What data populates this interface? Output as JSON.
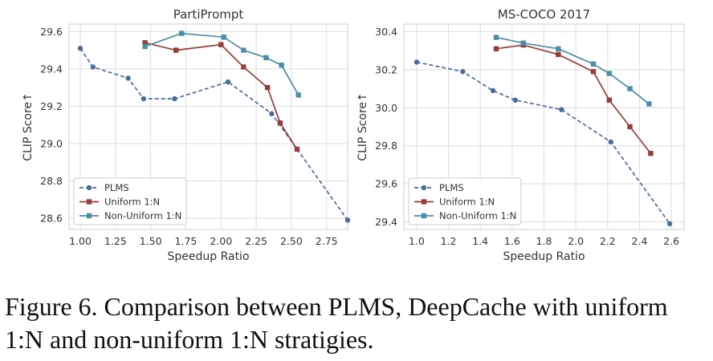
{
  "chart_data": [
    {
      "type": "line",
      "title": "PartiPrompt",
      "xlabel": "Speedup Ratio",
      "ylabel": "CLIP Score↑",
      "xlim": [
        0.92,
        2.9
      ],
      "ylim": [
        28.54,
        29.64
      ],
      "xticks": [
        1.0,
        1.25,
        1.5,
        1.75,
        2.0,
        2.25,
        2.5,
        2.75
      ],
      "xtick_labels": [
        "1.00",
        "1.25",
        "1.50",
        "1.75",
        "2.00",
        "2.25",
        "2.50",
        "2.75"
      ],
      "yticks": [
        28.6,
        28.8,
        29.0,
        29.2,
        29.4,
        29.6
      ],
      "ytick_labels": [
        "28.6",
        "28.8",
        "29.0",
        "29.2",
        "29.4",
        "29.6"
      ],
      "grid": true,
      "legend_position": "lower-left",
      "series": [
        {
          "name": "PLMS",
          "color": "#4a6c9b",
          "marker": "circle",
          "dash": true,
          "x": [
            1.0,
            1.09,
            1.34,
            1.45,
            1.67,
            2.05,
            2.36,
            2.9
          ],
          "y": [
            29.51,
            29.41,
            29.35,
            29.24,
            29.24,
            29.33,
            29.16,
            28.59
          ]
        },
        {
          "name": "Uniform 1:N",
          "color": "#963d38",
          "marker": "square",
          "dash": false,
          "x": [
            1.46,
            1.68,
            2.0,
            2.16,
            2.33,
            2.42,
            2.54
          ],
          "y": [
            29.54,
            29.5,
            29.53,
            29.41,
            29.3,
            29.11,
            28.97
          ]
        },
        {
          "name": "Non-Uniform 1:N",
          "color": "#4c8ea6",
          "marker": "square",
          "dash": false,
          "x": [
            1.46,
            1.72,
            2.02,
            2.16,
            2.32,
            2.43,
            2.55
          ],
          "y": [
            29.52,
            29.59,
            29.57,
            29.5,
            29.46,
            29.42,
            29.26
          ]
        }
      ]
    },
    {
      "type": "line",
      "title": "MS-COCO 2017",
      "xlabel": "Speedup Ratio",
      "ylabel": "CLIP Score↑",
      "xlim": [
        0.92,
        2.68
      ],
      "ylim": [
        29.36,
        30.44
      ],
      "xticks": [
        1.0,
        1.2,
        1.4,
        1.6,
        1.8,
        2.0,
        2.2,
        2.4,
        2.6
      ],
      "xtick_labels": [
        "1.0",
        "1.2",
        "1.4",
        "1.6",
        "1.8",
        "2.0",
        "2.2",
        "2.4",
        "2.6"
      ],
      "yticks": [
        29.4,
        29.6,
        29.8,
        30.0,
        30.2,
        30.4
      ],
      "ytick_labels": [
        "29.4",
        "29.6",
        "29.8",
        "30.0",
        "30.2",
        "30.4"
      ],
      "grid": true,
      "legend_position": "lower-left",
      "series": [
        {
          "name": "PLMS",
          "color": "#4a6c9b",
          "marker": "circle",
          "dash": true,
          "x": [
            1.0,
            1.29,
            1.48,
            1.62,
            1.91,
            2.22,
            2.59
          ],
          "y": [
            30.24,
            30.19,
            30.09,
            30.04,
            29.99,
            29.82,
            29.39
          ]
        },
        {
          "name": "Uniform 1:N",
          "color": "#963d38",
          "marker": "square",
          "dash": false,
          "x": [
            1.5,
            1.67,
            1.89,
            2.11,
            2.21,
            2.34,
            2.47
          ],
          "y": [
            30.31,
            30.33,
            30.28,
            30.19,
            30.04,
            29.9,
            29.76
          ]
        },
        {
          "name": "Non-Uniform 1:N",
          "color": "#4c8ea6",
          "marker": "square",
          "dash": false,
          "x": [
            1.5,
            1.67,
            1.89,
            2.11,
            2.21,
            2.34,
            2.46
          ],
          "y": [
            30.37,
            30.34,
            30.31,
            30.23,
            30.18,
            30.1,
            30.02
          ]
        }
      ]
    }
  ],
  "caption": "Figure 6. Comparison between PLMS, DeepCache with uniform 1:N and non-uniform 1:N stratigies."
}
